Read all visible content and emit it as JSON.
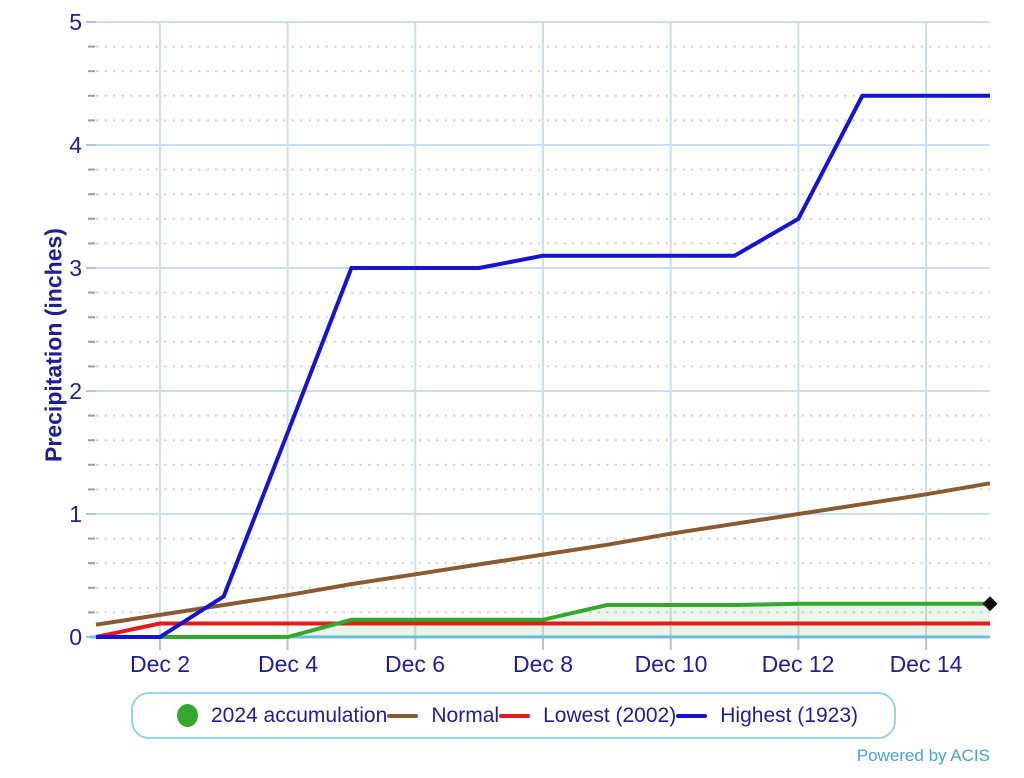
{
  "y_axis": {
    "title": "Precipitation (inches)",
    "ticks": [
      "0",
      "1",
      "2",
      "3",
      "4",
      "5"
    ]
  },
  "x_axis": {
    "labels": [
      "Dec 2",
      "Dec 4",
      "Dec 6",
      "Dec 8",
      "Dec 10",
      "Dec 12",
      "Dec 14"
    ]
  },
  "chart_data": {
    "type": "line",
    "title": "",
    "xlabel": "",
    "ylabel": "Precipitation (inches)",
    "x_days": [
      1,
      2,
      3,
      4,
      5,
      6,
      7,
      8,
      9,
      10,
      11,
      12,
      13,
      14,
      15
    ],
    "x_gridline_days": [
      2,
      4,
      6,
      8,
      10,
      12,
      14
    ],
    "x_tick_labels": [
      "Dec 2",
      "Dec 4",
      "Dec 6",
      "Dec 8",
      "Dec 10",
      "Dec 12",
      "Dec 14"
    ],
    "ylim": [
      0,
      5
    ],
    "y_major_step": 1,
    "y_minor_step": 0.2,
    "grid": true,
    "legend_position": "bottom",
    "series": [
      {
        "name": "2024 accumulation",
        "color": "#35A72E",
        "area_fill": "rgba(63,165,52,0.10)",
        "end_marker": "black-diamond",
        "values": [
          0,
          0,
          0,
          0,
          0.14,
          0.14,
          0.14,
          0.14,
          0.26,
          0.26,
          0.26,
          0.27,
          0.27,
          0.27,
          0.27
        ]
      },
      {
        "name": "Normal",
        "color": "#8A5A33",
        "values": [
          0.1,
          0.18,
          0.26,
          0.34,
          0.43,
          0.51,
          0.59,
          0.67,
          0.75,
          0.84,
          0.92,
          1.0,
          1.08,
          1.16,
          1.25
        ]
      },
      {
        "name": "Lowest (2002)",
        "color": "#E21B1B",
        "values": [
          0,
          0.11,
          0.11,
          0.11,
          0.11,
          0.11,
          0.11,
          0.11,
          0.11,
          0.11,
          0.11,
          0.11,
          0.11,
          0.11,
          0.11
        ]
      },
      {
        "name": "Highest (1923)",
        "color": "#1414D2",
        "values": [
          0,
          0,
          0.33,
          1.66,
          3.0,
          3.0,
          3.0,
          3.1,
          3.1,
          3.1,
          3.1,
          3.4,
          4.4,
          4.4,
          4.4
        ]
      }
    ],
    "draw_order": [
      2,
      1,
      0,
      3
    ]
  },
  "legend": {
    "items": [
      {
        "label": "2024 accumulation",
        "marker": "circle",
        "color": "#35A72E"
      },
      {
        "label": "Normal",
        "marker": "line",
        "color": "#8A5A33"
      },
      {
        "label": "Lowest (2002)",
        "marker": "line",
        "color": "#E21B1B"
      },
      {
        "label": "Highest (1923)",
        "marker": "line",
        "color": "#1414D2"
      }
    ]
  },
  "footer": {
    "credit": "Powered by ACIS"
  },
  "colors": {
    "text": "#1E1E96",
    "major_grid": "#C9DEF2",
    "minor_grid": "#D4D4DE",
    "axis_baseline": "#6FBEE6",
    "axis_tick": "#A9C6DF",
    "minor_tick": "#9C9CA6",
    "end_marker": "#0A0A0A",
    "legend_border": "#9AD2EC",
    "credit": "#4AA1D8"
  }
}
